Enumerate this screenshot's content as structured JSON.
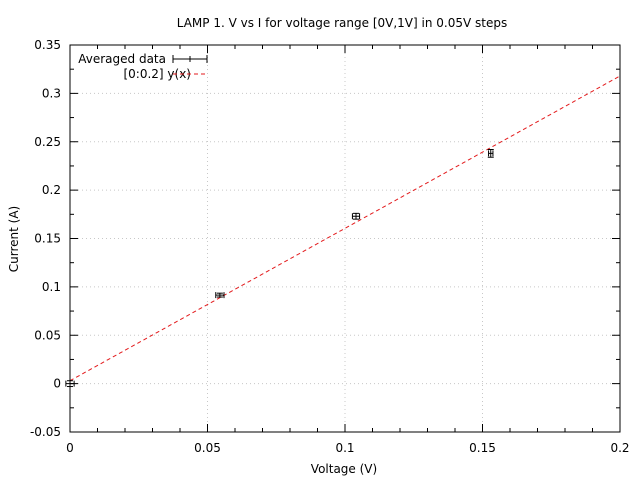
{
  "chart_data": {
    "type": "scatter",
    "title": "LAMP 1. V vs I for voltage range [0V,1V] in 0.05V steps",
    "xlabel": "Voltage (V)",
    "ylabel": "Current (A)",
    "xlim": [
      0,
      0.2
    ],
    "ylim": [
      -0.05,
      0.35
    ],
    "x_ticks": [
      0,
      0.05,
      0.1,
      0.15,
      0.2
    ],
    "x_tick_labels": [
      "0",
      "0.05",
      "0.1",
      "0.15",
      "0.2"
    ],
    "y_ticks": [
      -0.05,
      0,
      0.05,
      0.1,
      0.15,
      0.2,
      0.25,
      0.3,
      0.35
    ],
    "y_tick_labels": [
      "-0.05",
      "0",
      "0.05",
      "0.1",
      "0.15",
      "0.2",
      "0.25",
      "0.3",
      "0.35"
    ],
    "grid": true,
    "legend_position": "top-left",
    "series": [
      {
        "name": "Averaged data",
        "kind": "errorbars",
        "color": "#000000",
        "points": [
          {
            "x": 0.0,
            "y": 0.0,
            "xerr": 0.0015,
            "yerr": 0.003
          },
          {
            "x": 0.0545,
            "y": 0.0915,
            "xerr": 0.0015,
            "yerr": 0.002
          },
          {
            "x": 0.104,
            "y": 0.173,
            "xerr": 0.0013,
            "yerr": 0.003
          },
          {
            "x": 0.153,
            "y": 0.238,
            "xerr": 0.0008,
            "yerr": 0.004
          }
        ]
      },
      {
        "name": "[0:0.2] y(x)",
        "kind": "line",
        "color": "#e31a1c",
        "dash": true,
        "x": [
          0,
          0.2
        ],
        "y": [
          0.003,
          0.318
        ]
      }
    ]
  }
}
